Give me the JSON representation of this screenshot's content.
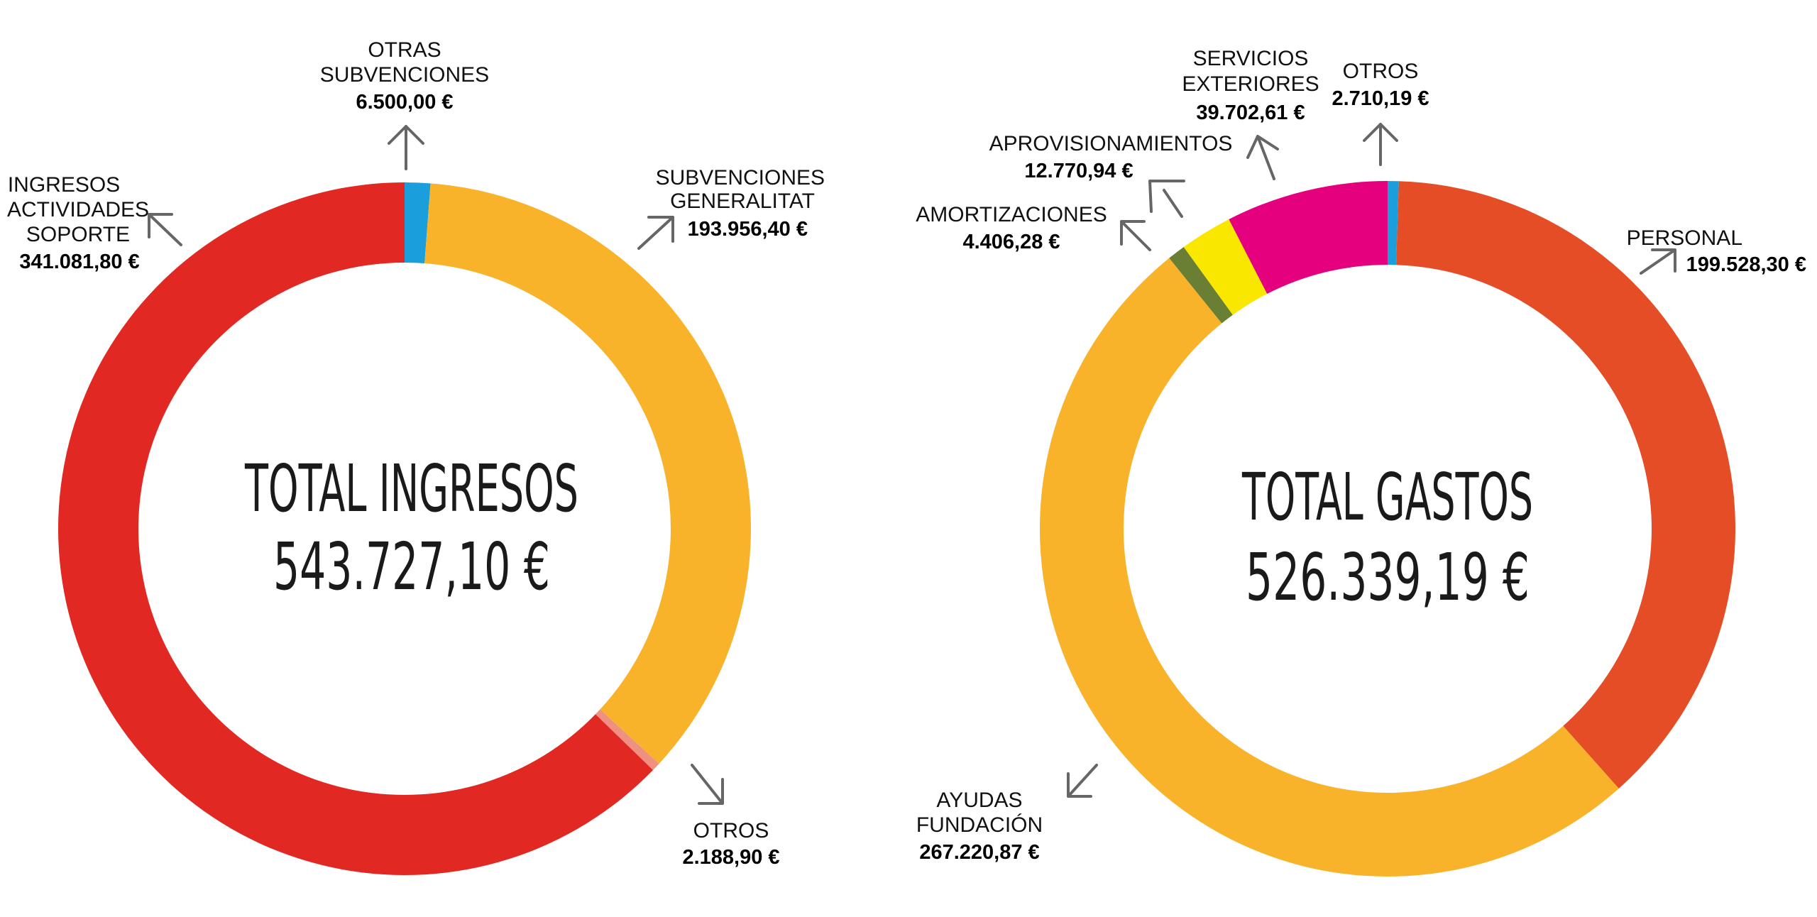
{
  "chart_data": [
    {
      "type": "pie",
      "center_title": "TOTAL INGRESOS",
      "center_value": "543.727,10 €",
      "slices": [
        {
          "label": "OTRAS SUBVENCIONES",
          "value": 6500.0,
          "value_text": "6.500,00 €",
          "color": "#1a9fdc"
        },
        {
          "label": "SUBVENCIONES GENERALITAT",
          "value": 193956.4,
          "value_text": "193.956,40 €",
          "color": "#f8b32b"
        },
        {
          "label": "OTROS",
          "value": 2188.9,
          "value_text": "2.188,90 €",
          "color": "#f09080"
        },
        {
          "label": "INGRESOS ACTIVIDADES SOPORTE",
          "value": 341081.8,
          "value_text": "341.081,80 €",
          "color": "#e12823"
        }
      ]
    },
    {
      "type": "pie",
      "center_title": "TOTAL GASTOS",
      "center_value": "526.339,19 €",
      "slices": [
        {
          "label": "OTROS",
          "value": 2710.19,
          "value_text": "2.710,19 €",
          "color": "#1a9fdc"
        },
        {
          "label": "PERSONAL",
          "value": 199528.3,
          "value_text": "199.528,30 €",
          "color": "#e54d26"
        },
        {
          "label": "AYUDAS FUNDACIÓN",
          "value": 267220.87,
          "value_text": "267.220,87 €",
          "color": "#f8b32b"
        },
        {
          "label": "AMORTIZACIONES",
          "value": 4406.28,
          "value_text": "4.406,28 €",
          "color": "#6b7f34"
        },
        {
          "label": "APROVISIONAMIENTOS",
          "value": 12770.94,
          "value_text": "12.770,94 €",
          "color": "#f9e700"
        },
        {
          "label": "SERVICIOS EXTERIORES",
          "value": 39702.61,
          "value_text": "39.702,61 €",
          "color": "#e5007e"
        }
      ]
    }
  ]
}
